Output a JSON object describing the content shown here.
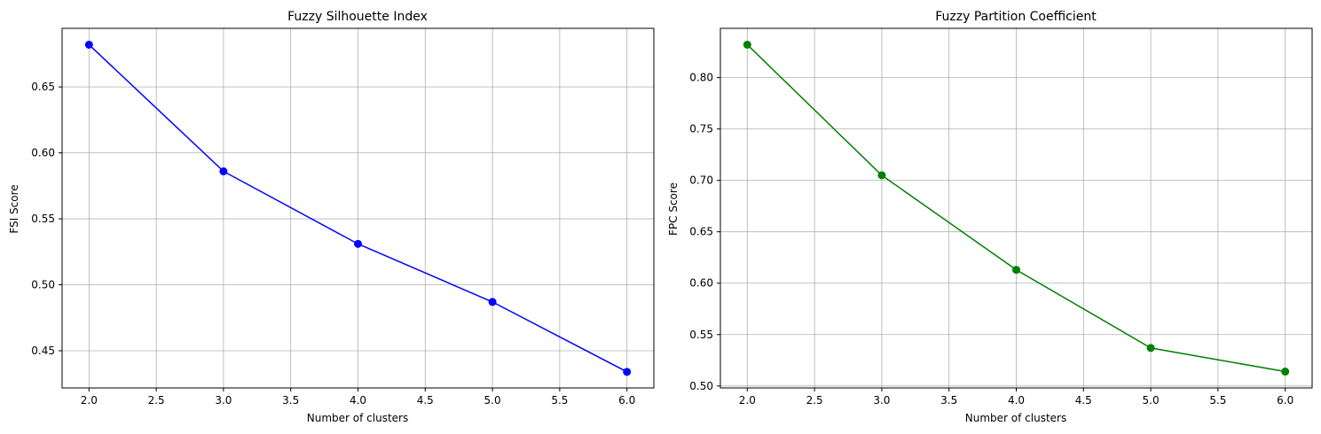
{
  "chart_data": [
    {
      "type": "line",
      "title": "Fuzzy Silhouette Index",
      "xlabel": "Number of clusters",
      "ylabel": "FSI Score",
      "x": [
        2,
        3,
        4,
        5,
        6
      ],
      "series": [
        {
          "values": [
            0.682,
            0.586,
            0.531,
            0.487,
            0.434
          ],
          "color": "#0000ff",
          "marker": "circle"
        }
      ],
      "xlim": [
        1.8,
        6.2
      ],
      "ylim": [
        0.4218,
        0.6944
      ],
      "xticks": [
        2.0,
        2.5,
        3.0,
        3.5,
        4.0,
        4.5,
        5.0,
        5.5,
        6.0
      ],
      "xtick_labels": [
        "2.0",
        "2.5",
        "3.0",
        "3.5",
        "4.0",
        "4.5",
        "5.0",
        "5.5",
        "6.0"
      ],
      "yticks": [
        0.45,
        0.5,
        0.55,
        0.6,
        0.65
      ],
      "ytick_labels": [
        "0.45",
        "0.50",
        "0.55",
        "0.60",
        "0.65"
      ],
      "grid": true
    },
    {
      "type": "line",
      "title": "Fuzzy Partition Coefficient",
      "xlabel": "Number of clusters",
      "ylabel": "FPC Score",
      "x": [
        2,
        3,
        4,
        5,
        6
      ],
      "series": [
        {
          "values": [
            0.832,
            0.705,
            0.613,
            0.537,
            0.514
          ],
          "color": "#008000",
          "marker": "circle"
        }
      ],
      "xlim": [
        1.8,
        6.2
      ],
      "ylim": [
        0.4981,
        0.8479
      ],
      "xticks": [
        2.0,
        2.5,
        3.0,
        3.5,
        4.0,
        4.5,
        5.0,
        5.5,
        6.0
      ],
      "xtick_labels": [
        "2.0",
        "2.5",
        "3.0",
        "3.5",
        "4.0",
        "4.5",
        "5.0",
        "5.5",
        "6.0"
      ],
      "yticks": [
        0.5,
        0.55,
        0.6,
        0.65,
        0.7,
        0.75,
        0.8
      ],
      "ytick_labels": [
        "0.50",
        "0.55",
        "0.60",
        "0.65",
        "0.70",
        "0.75",
        "0.80"
      ],
      "grid": true
    }
  ]
}
